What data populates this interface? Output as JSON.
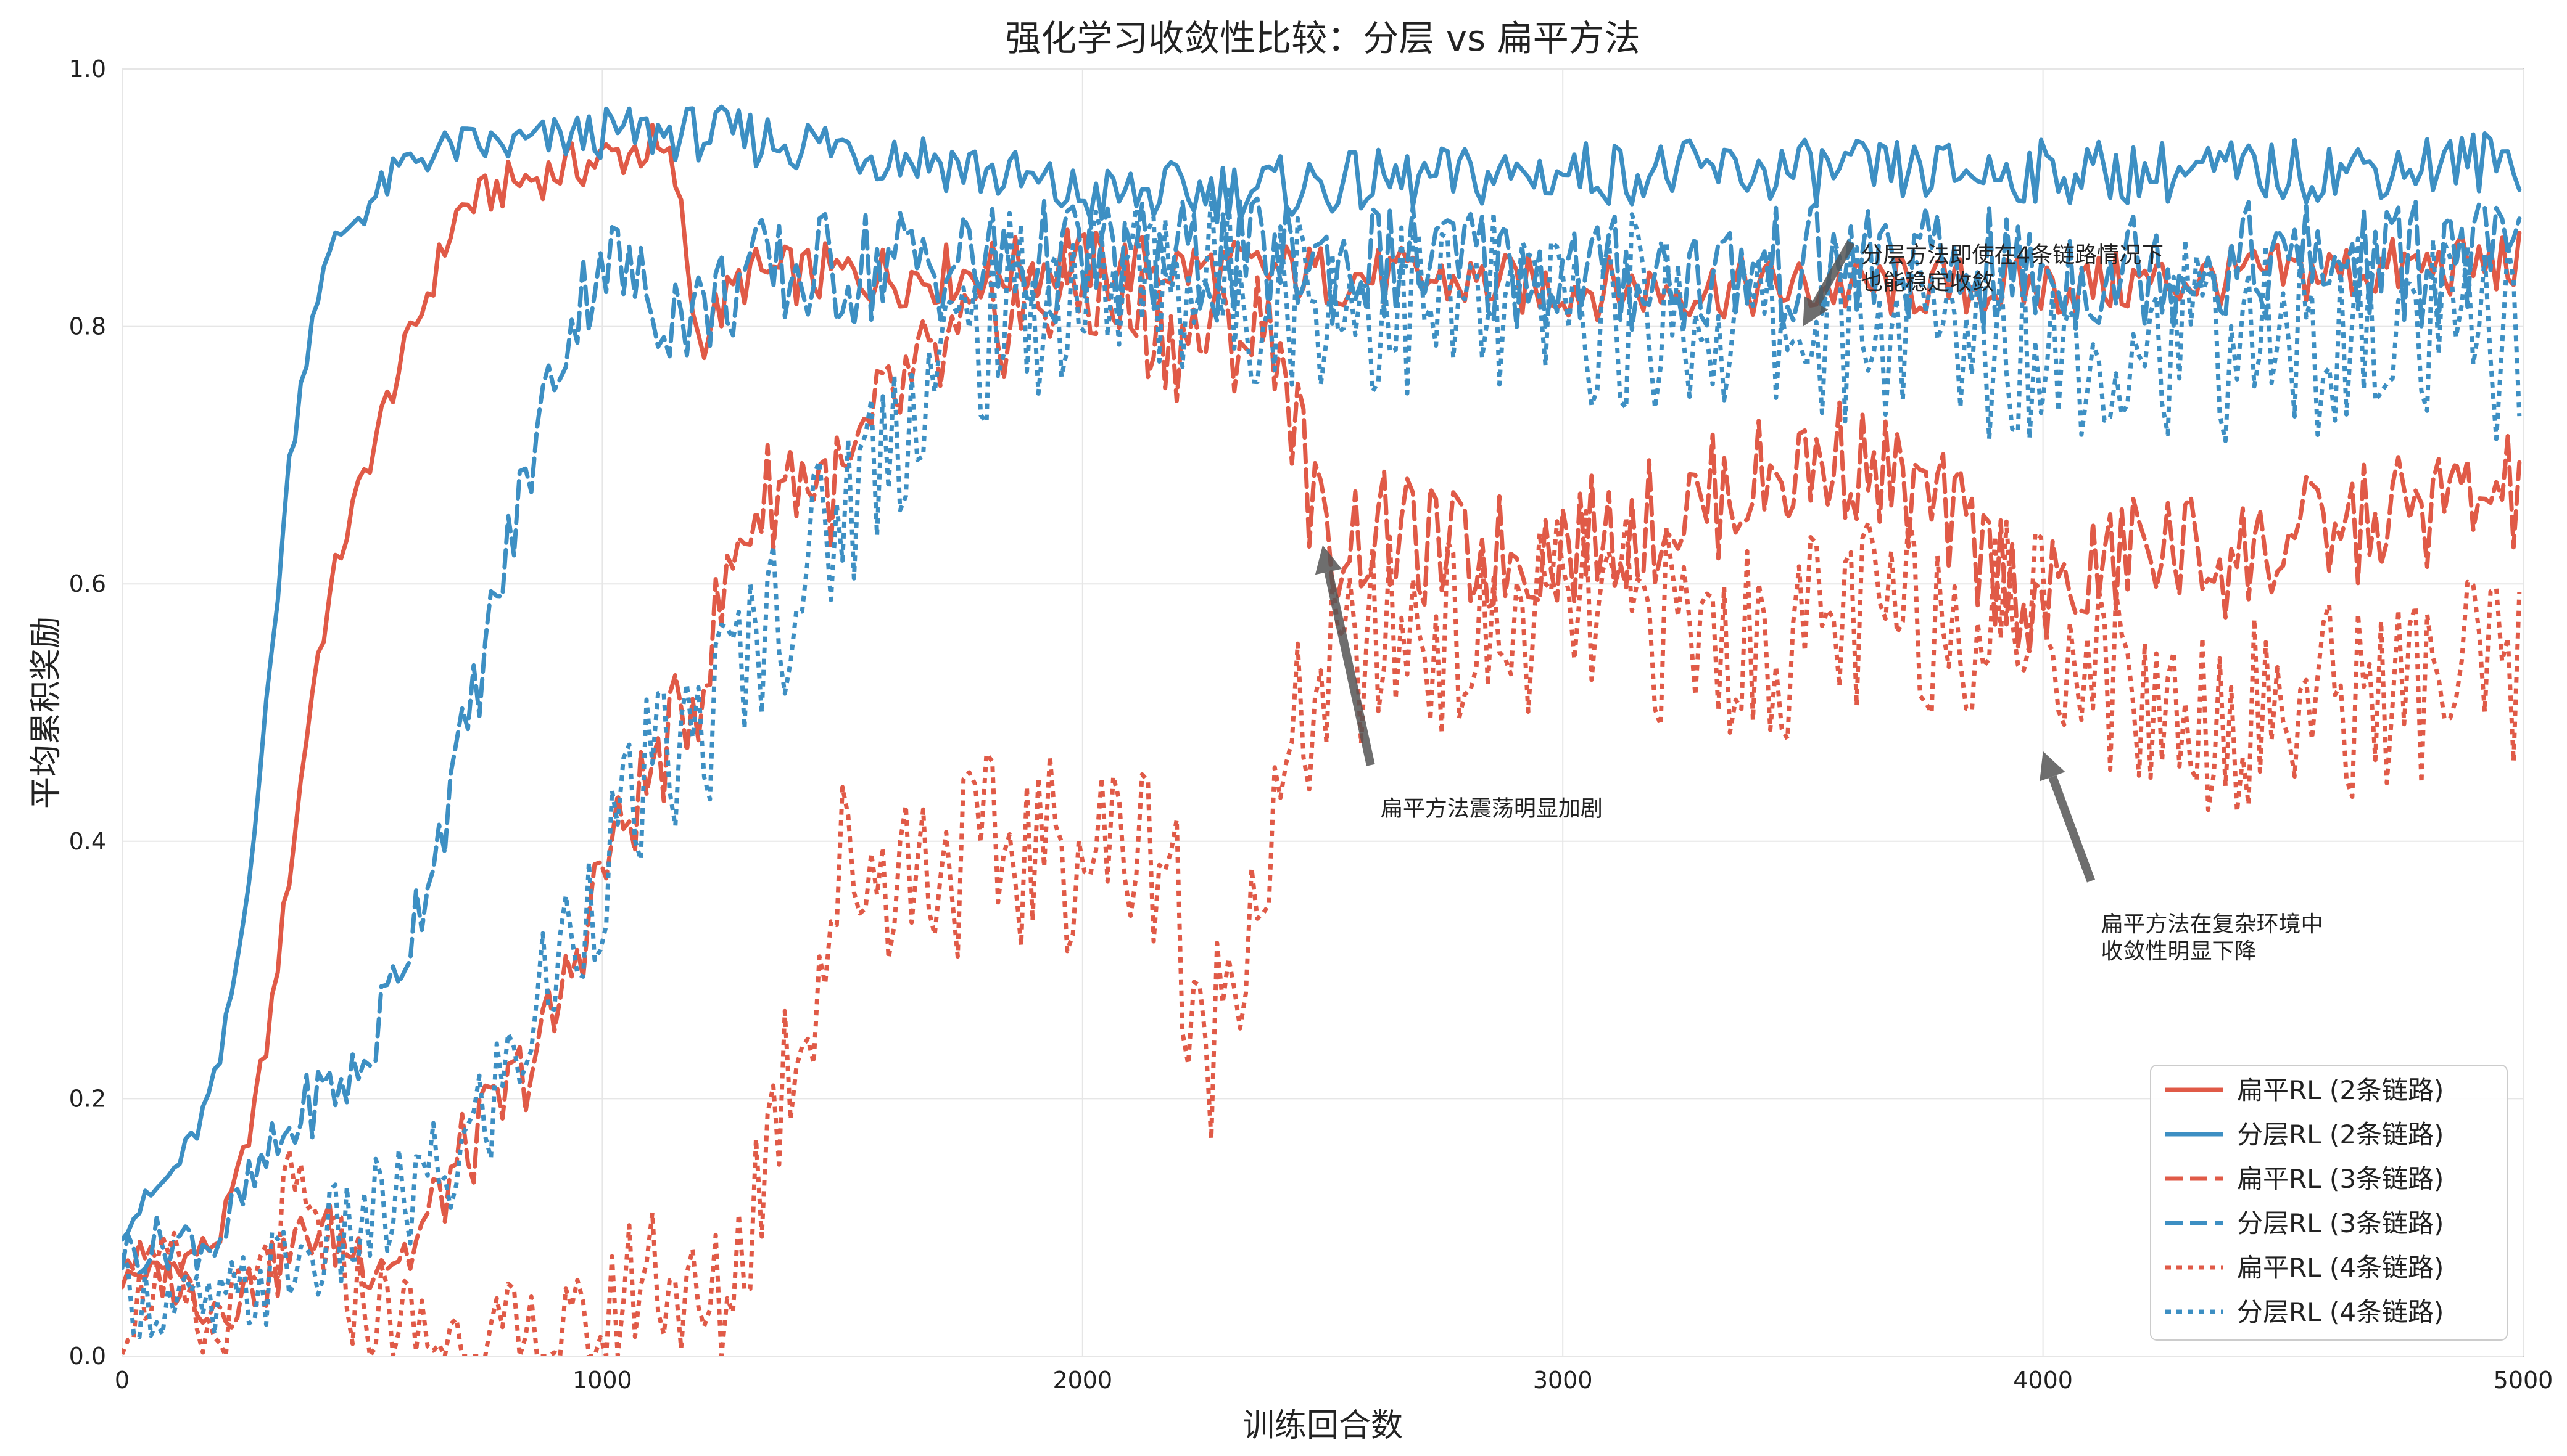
{
  "chart_data": {
    "type": "line",
    "title": "强化学习收敛性比较：分层 vs 扁平方法",
    "xlabel": "训练回合数",
    "ylabel": "平均累积奖励",
    "xlim": [
      0,
      5000
    ],
    "ylim": [
      0.0,
      1.0
    ],
    "x_ticks": [
      "0",
      "1000",
      "2000",
      "3000",
      "4000",
      "5000"
    ],
    "y_ticks": [
      "0.0",
      "0.2",
      "0.4",
      "0.6",
      "0.8",
      "1.0"
    ],
    "grid": true,
    "legend_position": "bottom-right",
    "colors": {
      "flat": "#e05a47",
      "hier": "#3d8fc3",
      "arrow": "#555555"
    },
    "series": [
      {
        "name": "扁平RL (2条链路)",
        "color": "#e05a47",
        "dash": "solid",
        "x": [
          0,
          100,
          200,
          250,
          300,
          350,
          400,
          450,
          500,
          550,
          600,
          650,
          700,
          800,
          900,
          1000,
          1100,
          1150,
          1200,
          1300,
          1500,
          1700,
          2000,
          2500,
          3000,
          3500,
          4000,
          4500,
          5000
        ],
        "y": [
          0.06,
          0.07,
          0.09,
          0.15,
          0.24,
          0.38,
          0.53,
          0.62,
          0.68,
          0.74,
          0.79,
          0.84,
          0.89,
          0.91,
          0.92,
          0.93,
          0.94,
          0.92,
          0.79,
          0.84,
          0.84,
          0.84,
          0.85,
          0.84,
          0.83,
          0.83,
          0.83,
          0.84,
          0.85
        ]
      },
      {
        "name": "分层RL (2条链路)",
        "color": "#3d8fc3",
        "dash": "solid",
        "x": [
          0,
          50,
          100,
          150,
          200,
          250,
          300,
          350,
          400,
          450,
          500,
          600,
          700,
          800,
          1000,
          1200,
          1500,
          1700,
          2000,
          2500,
          3000,
          3500,
          4000,
          4500,
          5000
        ],
        "y": [
          0.1,
          0.12,
          0.14,
          0.17,
          0.22,
          0.33,
          0.5,
          0.7,
          0.82,
          0.87,
          0.89,
          0.93,
          0.94,
          0.94,
          0.95,
          0.95,
          0.94,
          0.93,
          0.9,
          0.91,
          0.92,
          0.92,
          0.92,
          0.92,
          0.93
        ]
      },
      {
        "name": "扁平RL (3条链路)",
        "color": "#e05a47",
        "dash": "dashed",
        "x": [
          0,
          100,
          200,
          300,
          400,
          500,
          600,
          700,
          800,
          900,
          1000,
          1100,
          1200,
          1300,
          1400,
          1500,
          1600,
          1700,
          1800,
          1900,
          2000,
          2200,
          2400,
          2500,
          2600,
          2800,
          3000,
          3200,
          3400,
          3600,
          3800,
          4000,
          4200,
          4400,
          4600,
          4800,
          5000
        ],
        "y": [
          0.08,
          0.06,
          0.04,
          0.06,
          0.1,
          0.08,
          0.08,
          0.15,
          0.2,
          0.26,
          0.38,
          0.45,
          0.52,
          0.65,
          0.69,
          0.67,
          0.74,
          0.77,
          0.8,
          0.82,
          0.83,
          0.79,
          0.8,
          0.63,
          0.64,
          0.62,
          0.63,
          0.65,
          0.68,
          0.7,
          0.65,
          0.58,
          0.63,
          0.62,
          0.64,
          0.66,
          0.67
        ]
      },
      {
        "name": "分层RL (3条链路)",
        "color": "#3d8fc3",
        "dash": "dashed",
        "x": [
          0,
          100,
          200,
          300,
          400,
          500,
          600,
          700,
          800,
          900,
          1000,
          1100,
          1200,
          1300,
          1400,
          1600,
          1800,
          2000,
          2200,
          2500,
          2800,
          3000,
          3300,
          3600,
          4000,
          4300,
          4600,
          5000
        ],
        "y": [
          0.08,
          0.09,
          0.09,
          0.15,
          0.2,
          0.22,
          0.33,
          0.46,
          0.62,
          0.77,
          0.86,
          0.82,
          0.81,
          0.84,
          0.84,
          0.85,
          0.85,
          0.85,
          0.85,
          0.85,
          0.85,
          0.84,
          0.84,
          0.85,
          0.84,
          0.85,
          0.85,
          0.85
        ]
      },
      {
        "name": "扁平RL (4条链路)",
        "color": "#e05a47",
        "dash": "dotted",
        "x": [
          0,
          50,
          100,
          150,
          200,
          250,
          300,
          350,
          400,
          450,
          500,
          600,
          700,
          800,
          900,
          1000,
          1050,
          1100,
          1150,
          1200,
          1250,
          1300,
          1350,
          1400,
          1450,
          1500,
          2200,
          2210,
          2250,
          2300,
          2350,
          2400,
          2450,
          2500,
          2600,
          2700,
          2800,
          2900,
          3000,
          3200,
          3400,
          3600,
          3800,
          4000,
          4200,
          4400,
          4600,
          4800,
          5000
        ],
        "y": [
          0.03,
          0.05,
          0.07,
          0.02,
          0.01,
          0.04,
          0.06,
          0.12,
          0.1,
          0.07,
          0.04,
          0.02,
          0.01,
          0.0,
          0.0,
          0.0,
          0.05,
          0.08,
          0.06,
          0.02,
          0.04,
          0.1,
          0.18,
          0.25,
          0.3,
          0.38,
          0.4,
          0.25,
          0.22,
          0.3,
          0.36,
          0.4,
          0.48,
          0.52,
          0.55,
          0.57,
          0.55,
          0.56,
          0.58,
          0.57,
          0.55,
          0.57,
          0.58,
          0.58,
          0.51,
          0.5,
          0.51,
          0.52,
          0.53
        ]
      },
      {
        "name": "分层RL (4条链路)",
        "color": "#3d8fc3",
        "dash": "dotted",
        "x": [
          0,
          100,
          200,
          300,
          400,
          500,
          600,
          700,
          800,
          900,
          1000,
          1100,
          1200,
          1300,
          1400,
          1500,
          1600,
          1700,
          1800,
          1900,
          2000,
          2200,
          2400,
          2600,
          2800,
          3000,
          3200,
          3400,
          3600,
          3800,
          4000,
          4200,
          4400,
          4600,
          4800,
          5000
        ],
        "y": [
          0.05,
          0.04,
          0.03,
          0.06,
          0.08,
          0.1,
          0.12,
          0.15,
          0.22,
          0.3,
          0.38,
          0.45,
          0.48,
          0.55,
          0.6,
          0.66,
          0.72,
          0.77,
          0.8,
          0.82,
          0.83,
          0.84,
          0.83,
          0.82,
          0.81,
          0.81,
          0.81,
          0.8,
          0.8,
          0.79,
          0.79,
          0.79,
          0.79,
          0.79,
          0.79,
          0.79
        ]
      }
    ],
    "annotations": [
      {
        "text": [
          "分层方法即使在4条链路情况下",
          "也能稳定收敛"
        ],
        "x": 3500,
        "y": 0.8,
        "text_x": 3600,
        "text_y": 0.87
      },
      {
        "text": [
          "扁平方法震荡明显加剧"
        ],
        "x": 2500,
        "y": 0.63,
        "text_x": 2600,
        "text_y": 0.44
      },
      {
        "text": [
          "扁平方法在复杂环境中",
          "收敛性明显下降"
        ],
        "x": 4000,
        "y": 0.47,
        "text_x": 4100,
        "text_y": 0.35
      }
    ]
  }
}
